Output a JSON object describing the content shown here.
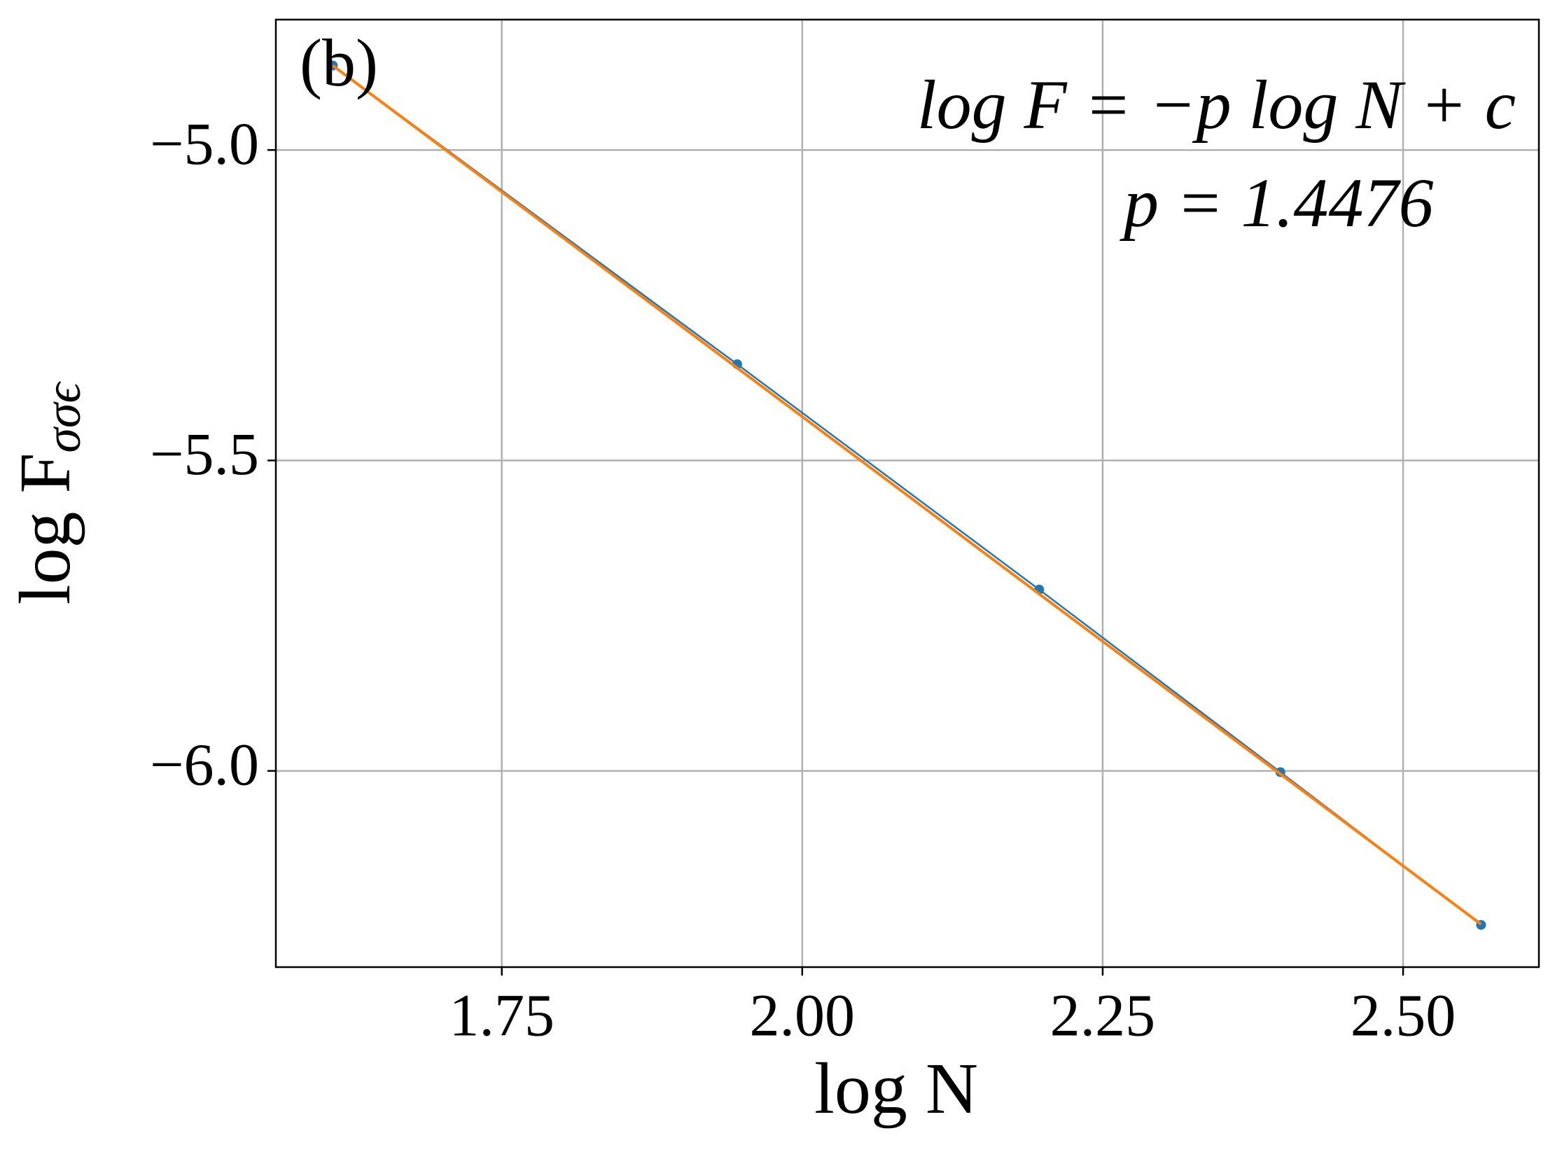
{
  "chart_data": {
    "type": "line",
    "x_label": "log N",
    "y_label": {
      "main": "log F",
      "sub": "σσϵ"
    },
    "annotations": [
      "(b)",
      "log F = −p log N + c",
      "p = 1.4476"
    ],
    "x": [
      1.6094,
      1.9459,
      2.1972,
      2.3979,
      2.5649
    ],
    "series": [
      {
        "color": "#1f77b4",
        "markers": true,
        "values": [
          -4.864,
          -5.345,
          -5.708,
          -6.002,
          -6.248
        ]
      },
      {
        "color": "#ff7f0e",
        "markers": false,
        "values": [
          -4.864,
          -5.351,
          -5.715,
          -6.005,
          -6.247
        ]
      }
    ],
    "xlim": [
      1.562,
      2.613
    ],
    "ylim": [
      -6.316,
      -4.79
    ],
    "xticks": [
      1.75,
      {
        "value": 2,
        "label": "2.00"
      },
      2.25,
      {
        "value": 2.5,
        "label": "2.50"
      }
    ],
    "yticks": [
      {
        "value": -5,
        "label": "−5.0"
      },
      {
        "value": -5.5,
        "label": "−5.5"
      },
      {
        "value": -6,
        "label": "−6.0"
      }
    ],
    "grid": true
  }
}
